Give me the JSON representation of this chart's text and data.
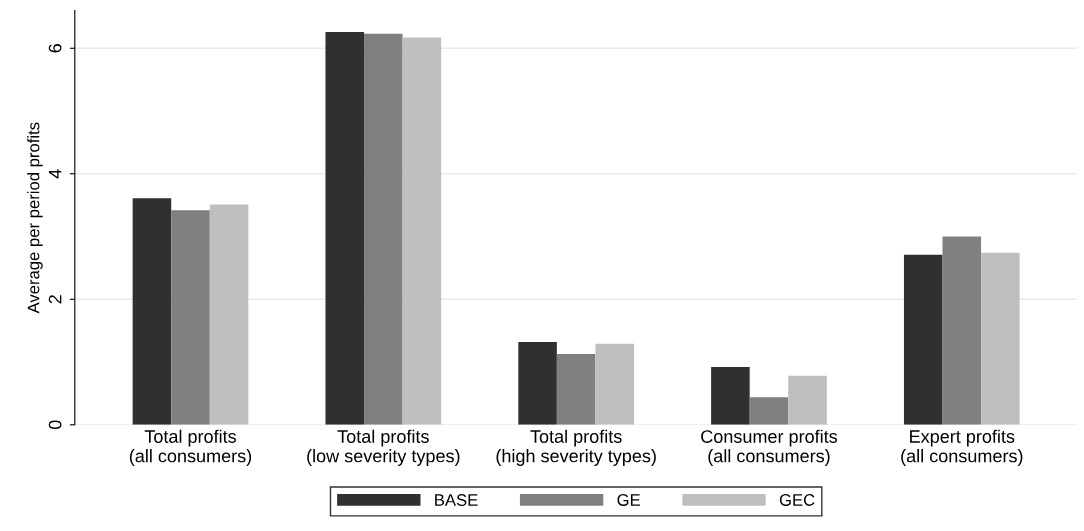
{
  "chart_data": {
    "type": "bar",
    "ylabel": "Average per period profits",
    "categories": [
      "Total profits\n(all consumers)",
      "Total profits\n(low severity types)",
      "Total profits\n(high severity types)",
      "Consumer profits\n(all consumers)",
      "Expert profits\n(all consumers)"
    ],
    "series": [
      {
        "name": "BASE",
        "color": "#303030",
        "values": [
          3.61,
          6.26,
          1.32,
          0.92,
          2.71
        ]
      },
      {
        "name": "GE",
        "color": "#808080",
        "values": [
          3.42,
          6.23,
          1.13,
          0.44,
          3.0
        ]
      },
      {
        "name": "GEC",
        "color": "#bfbfbf",
        "values": [
          3.51,
          6.17,
          1.29,
          0.78,
          2.74
        ]
      }
    ],
    "ylim": [
      0,
      6.6
    ],
    "yticks": [
      0,
      2,
      4,
      6
    ],
    "grid": "y",
    "legend": "bottom"
  }
}
